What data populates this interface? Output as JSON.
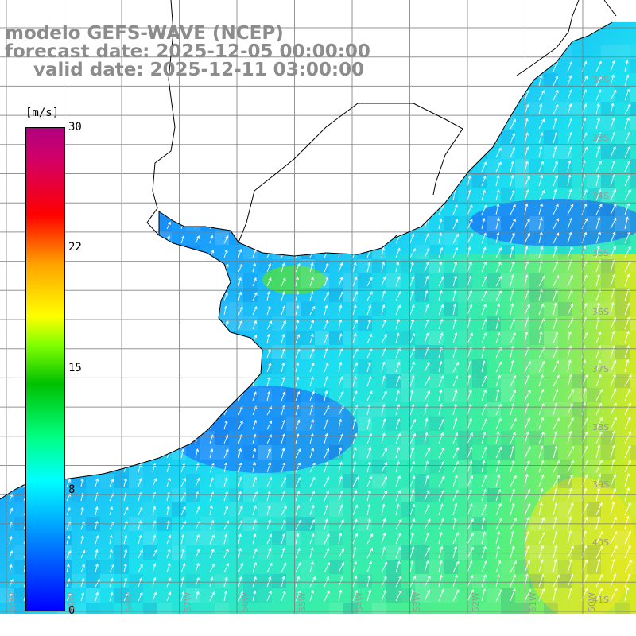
{
  "title": {
    "line1": "modelo GEFS-WAVE (NCEP)",
    "line2": "forecast date: 2025-12-05 00:00:00",
    "line3": "valid date: 2025-12-11 03:00:00"
  },
  "colorbar": {
    "unit": "[m/s]",
    "ticks": [
      "30",
      "22",
      "15",
      "8",
      "0"
    ],
    "min": 0,
    "max": 30,
    "colors": [
      "#0000ff",
      "#0080ff",
      "#00ffff",
      "#00ff80",
      "#00c000",
      "#80ff00",
      "#ffff00",
      "#ffa000",
      "#ff0000",
      "#b00080"
    ]
  },
  "axes": {
    "lat_labels": [
      "32S",
      "33S",
      "34S",
      "35S",
      "36S",
      "37S",
      "38S",
      "39S",
      "40S",
      "41S"
    ],
    "lon_labels": [
      "60W",
      "59W",
      "58W",
      "57W",
      "56W",
      "55W",
      "54W",
      "53W",
      "52W",
      "51W",
      "50W"
    ]
  },
  "colors": {
    "land": "#ffffff",
    "coast": "#000000",
    "grid": "#808080",
    "arrows": "#ffffff",
    "labels": "#8c8c8c"
  }
}
